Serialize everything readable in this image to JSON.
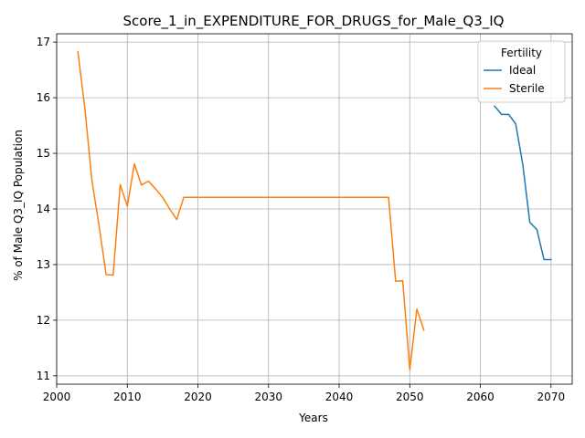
{
  "chart_data": {
    "type": "line",
    "title": "Score_1_in_EXPENDITURE_FOR_DRUGS_for_Male_Q3_IQ",
    "xlabel": "Years",
    "ylabel": "% of Male Q3_IQ Population",
    "xlim": [
      2000,
      2073
    ],
    "ylim": [
      10.85,
      17.15
    ],
    "x_ticks": [
      2000,
      2010,
      2020,
      2030,
      2040,
      2050,
      2060,
      2070
    ],
    "y_ticks": [
      11,
      12,
      13,
      14,
      15,
      16,
      17
    ],
    "grid": true,
    "legend": {
      "title": "Fertility",
      "placement": "top-right"
    },
    "series": [
      {
        "name": "Ideal",
        "color": "#1f77b4",
        "x": [
          2062,
          2063,
          2064,
          2065,
          2066,
          2067,
          2068,
          2069,
          2070
        ],
        "y": [
          15.85,
          15.7,
          15.7,
          15.53,
          14.8,
          13.76,
          13.63,
          13.09,
          13.09
        ]
      },
      {
        "name": "Sterile",
        "color": "#ff7f0e",
        "x": [
          2003,
          2004,
          2005,
          2006,
          2007,
          2008,
          2009,
          2010,
          2011,
          2012,
          2013,
          2014,
          2015,
          2016,
          2017,
          2018,
          2020,
          2025,
          2030,
          2035,
          2040,
          2045,
          2047,
          2048,
          2049,
          2050,
          2051,
          2052
        ],
        "y": [
          16.83,
          15.8,
          14.5,
          13.7,
          12.82,
          12.81,
          14.44,
          14.05,
          14.81,
          14.43,
          14.5,
          14.36,
          14.21,
          14.0,
          13.81,
          14.21,
          14.21,
          14.21,
          14.21,
          14.21,
          14.21,
          14.21,
          14.21,
          12.7,
          12.71,
          11.11,
          12.2,
          11.82
        ]
      }
    ]
  }
}
